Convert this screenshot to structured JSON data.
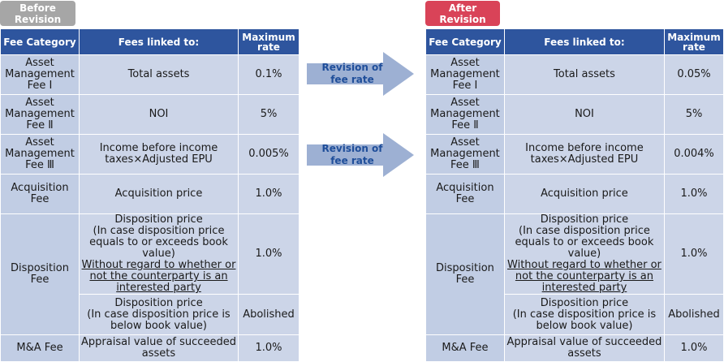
{
  "before_badge": "Before\nRevision",
  "after_badge": "After\nRevision",
  "headers": {
    "category": "Fee Category",
    "linked": "Fees linked to:",
    "rate": "Maximum rate"
  },
  "arrows": {
    "first": "Revision of\nfee rate",
    "second": "Revision of\nfee rate"
  },
  "rows": {
    "am1": {
      "category": "Asset Management Fee Ⅰ",
      "linked": "Total assets",
      "before": "0.1%",
      "after": "0.05%"
    },
    "am2": {
      "category": "Asset Management Fee Ⅱ",
      "linked": "NOI",
      "before": "5%",
      "after": "5%"
    },
    "am3": {
      "category": "Asset Management Fee Ⅲ",
      "linked": "Income before income taxes×Adjusted EPU",
      "before": "0.005%",
      "after": "0.004%"
    },
    "acq": {
      "category": "Acquisition Fee",
      "linked": "Acquisition price",
      "before": "1.0%",
      "after": "1.0%"
    },
    "disp": {
      "category": "Disposition Fee",
      "linked_a_main": "Disposition price",
      "linked_a_sub": "(In case disposition price equals to or exceeds book value)",
      "linked_a_ul": "Without regard to whether or not the counterparty is an interested party",
      "before_a": "1.0%",
      "after_a": "1.0%",
      "linked_b_main": "Disposition price",
      "linked_b_sub": "(In case disposition price is below book value)",
      "before_b": "Abolished",
      "after_b": "Abolished"
    },
    "ma": {
      "category": "M&A Fee",
      "linked": "Appraisal value of succeeded assets",
      "before": "1.0%",
      "after": "1.0%"
    }
  },
  "colors": {
    "header": "#2e559e",
    "cell": "#ccd5e8",
    "before_badge": "#a6a6a6",
    "after_badge": "#d94358",
    "arrow": "#9db0d3"
  }
}
